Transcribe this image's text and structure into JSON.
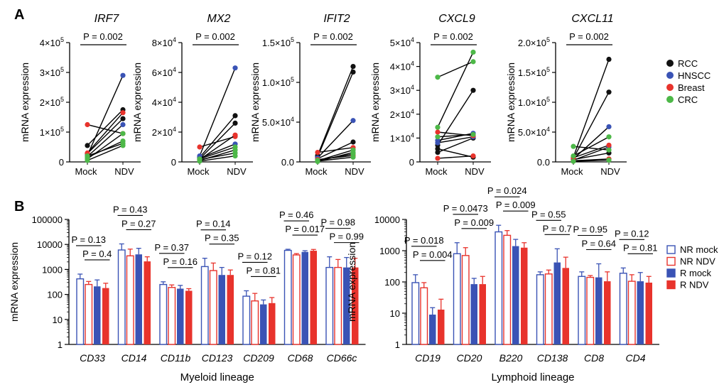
{
  "chart_data": [
    {
      "type": "scatter",
      "panel": "A",
      "title": "IRF7",
      "ylabel": "mRNA expression",
      "categories": [
        "Mock",
        "NDV"
      ],
      "ylim": [
        0,
        400000
      ],
      "yticks": [
        "0",
        "1×10^5",
        "2×10^5",
        "3×10^5",
        "4×10^5"
      ],
      "pvalue": "P = 0.002",
      "pairs": [
        {
          "group": "RCC",
          "mock": 55000,
          "ndv": 175000
        },
        {
          "group": "RCC",
          "mock": 28000,
          "ndv": 145000
        },
        {
          "group": "HNSCC",
          "mock": 22000,
          "ndv": 290000
        },
        {
          "group": "HNSCC",
          "mock": 18000,
          "ndv": 125000
        },
        {
          "group": "Breast",
          "mock": 125000,
          "ndv": 95000
        },
        {
          "group": "Breast",
          "mock": 30000,
          "ndv": 165000
        },
        {
          "group": "CRC",
          "mock": 10000,
          "ndv": 95000
        },
        {
          "group": "CRC",
          "mock": 15000,
          "ndv": 70000
        },
        {
          "group": "CRC",
          "mock": 5000,
          "ndv": 55000
        },
        {
          "group": "CRC",
          "mock": 20000,
          "ndv": 62000
        }
      ]
    },
    {
      "type": "scatter",
      "panel": "A",
      "title": "MX2",
      "ylabel": "mRNA expression",
      "categories": [
        "Mock",
        "NDV"
      ],
      "ylim": [
        0,
        80000
      ],
      "yticks": [
        "0",
        "2×10^4",
        "4×10^4",
        "6×10^4",
        "8×10^4"
      ],
      "pvalue": "P = 0.002",
      "pairs": [
        {
          "group": "RCC",
          "mock": 3000,
          "ndv": 31000
        },
        {
          "group": "RCC",
          "mock": 2000,
          "ndv": 26000
        },
        {
          "group": "HNSCC",
          "mock": 4000,
          "ndv": 63000
        },
        {
          "group": "HNSCC",
          "mock": 2500,
          "ndv": 12000
        },
        {
          "group": "Breast",
          "mock": 10000,
          "ndv": 17000
        },
        {
          "group": "Breast",
          "mock": 1500,
          "ndv": 18000
        },
        {
          "group": "CRC",
          "mock": 1000,
          "ndv": 8000
        },
        {
          "group": "CRC",
          "mock": 1500,
          "ndv": 6000
        },
        {
          "group": "CRC",
          "mock": 500,
          "ndv": 4000
        },
        {
          "group": "CRC",
          "mock": 2000,
          "ndv": 10000
        }
      ]
    },
    {
      "type": "scatter",
      "panel": "A",
      "title": "IFIT2",
      "ylabel": "mRNA expression",
      "categories": [
        "Mock",
        "NDV"
      ],
      "ylim": [
        0,
        150000
      ],
      "yticks": [
        "0.0",
        "5.0×10^4",
        "1.0×10^5",
        "1.5×10^5"
      ],
      "pvalue": "P = 0.002",
      "pairs": [
        {
          "group": "RCC",
          "mock": 8000,
          "ndv": 120000
        },
        {
          "group": "RCC",
          "mock": 6000,
          "ndv": 113000
        },
        {
          "group": "RCC",
          "mock": 4000,
          "ndv": 25000
        },
        {
          "group": "HNSCC",
          "mock": 5000,
          "ndv": 52000
        },
        {
          "group": "Breast",
          "mock": 12000,
          "ndv": 18000
        },
        {
          "group": "Breast",
          "mock": 3000,
          "ndv": 8000
        },
        {
          "group": "CRC",
          "mock": 2000,
          "ndv": 10000
        },
        {
          "group": "CRC",
          "mock": 1000,
          "ndv": 6000
        },
        {
          "group": "CRC",
          "mock": 500,
          "ndv": 12000
        },
        {
          "group": "CRC",
          "mock": 1500,
          "ndv": 15000
        }
      ]
    },
    {
      "type": "scatter",
      "panel": "A",
      "title": "CXCL9",
      "ylabel": "mRNA expression",
      "categories": [
        "Mock",
        "NDV"
      ],
      "ylim": [
        0,
        50000
      ],
      "yticks": [
        "0",
        "1×10^4",
        "2×10^4",
        "3×10^4",
        "4×10^4",
        "5×10^4"
      ],
      "pvalue": "P = 0.002",
      "pairs": [
        {
          "group": "RCC",
          "mock": 7000,
          "ndv": 30000
        },
        {
          "group": "RCC",
          "mock": 4000,
          "ndv": 10000
        },
        {
          "group": "RCC",
          "mock": 5500,
          "ndv": 2000
        },
        {
          "group": "HNSCC",
          "mock": 9000,
          "ndv": 12000
        },
        {
          "group": "HNSCC",
          "mock": 8000,
          "ndv": 10500
        },
        {
          "group": "Breast",
          "mock": 12500,
          "ndv": 11000
        },
        {
          "group": "Breast",
          "mock": 1500,
          "ndv": 2500
        },
        {
          "group": "CRC",
          "mock": 35500,
          "ndv": 42000
        },
        {
          "group": "CRC",
          "mock": 14500,
          "ndv": 46000
        },
        {
          "group": "CRC",
          "mock": 10500,
          "ndv": 11500
        }
      ]
    },
    {
      "type": "scatter",
      "panel": "A",
      "title": "CXCL11",
      "ylabel": "mRNA expression",
      "categories": [
        "Mock",
        "NDV"
      ],
      "ylim": [
        0,
        200000
      ],
      "yticks": [
        "0.0",
        "5.0×10^4",
        "1.0×10^5",
        "1.5×10^5",
        "2.0×10^5"
      ],
      "pvalue": "P = 0.002",
      "pairs": [
        {
          "group": "RCC",
          "mock": 8000,
          "ndv": 172000
        },
        {
          "group": "RCC",
          "mock": 6000,
          "ndv": 117000
        },
        {
          "group": "RCC",
          "mock": 4000,
          "ndv": 15000
        },
        {
          "group": "HNSCC",
          "mock": 5000,
          "ndv": 59000
        },
        {
          "group": "HNSCC",
          "mock": 3000,
          "ndv": 25000
        },
        {
          "group": "Breast",
          "mock": 7000,
          "ndv": 28000
        },
        {
          "group": "Breast",
          "mock": 2000,
          "ndv": 5000
        },
        {
          "group": "CRC",
          "mock": 26000,
          "ndv": 20000
        },
        {
          "group": "CRC",
          "mock": 10000,
          "ndv": 42000
        },
        {
          "group": "CRC",
          "mock": 1000,
          "ndv": 3000
        }
      ]
    },
    {
      "type": "bar",
      "panel": "B",
      "xlabel": "Myeloid lineage",
      "ylabel": "mRNA expression",
      "scale": "log",
      "ylim": [
        1,
        100000
      ],
      "yticks": [
        "1",
        "10",
        "100",
        "1000",
        "10000",
        "100000"
      ],
      "categories": [
        "CD33",
        "CD14",
        "CD11b",
        "CD123",
        "CD209",
        "CD68",
        "CD66c"
      ],
      "series": [
        {
          "name": "NR mock",
          "values": [
            420,
            6000,
            250,
            1300,
            85,
            5800,
            1200
          ],
          "errors": [
            650,
            10500,
            320,
            2800,
            140,
            6400,
            3200
          ]
        },
        {
          "name": "NR NDV",
          "values": [
            250,
            3500,
            190,
            900,
            55,
            3800,
            1200
          ],
          "errors": [
            330,
            6500,
            240,
            1800,
            110,
            4300,
            2500
          ]
        },
        {
          "name": "R mock",
          "values": [
            210,
            4000,
            170,
            600,
            40,
            5000,
            1200
          ],
          "errors": [
            380,
            7000,
            230,
            1200,
            60,
            5600,
            3000
          ]
        },
        {
          "name": "R NDV",
          "values": [
            180,
            2100,
            140,
            600,
            45,
            5600,
            1200
          ],
          "errors": [
            280,
            3200,
            170,
            950,
            75,
            6300,
            2800
          ]
        }
      ],
      "comparisons": [
        {
          "label": "P = 0.13",
          "group": "CD33",
          "pair": [
            "NR mock",
            "R mock"
          ]
        },
        {
          "label": "P = 0.4",
          "group": "CD33",
          "pair": [
            "NR NDV",
            "R NDV"
          ]
        },
        {
          "label": "P = 0.43",
          "group": "CD14",
          "pair": [
            "NR mock",
            "R mock"
          ]
        },
        {
          "label": "P = 0.27",
          "group": "CD14",
          "pair": [
            "NR NDV",
            "R NDV"
          ]
        },
        {
          "label": "P = 0.37",
          "group": "CD11b",
          "pair": [
            "NR mock",
            "R mock"
          ]
        },
        {
          "label": "P = 0.16",
          "group": "CD11b",
          "pair": [
            "NR NDV",
            "R NDV"
          ]
        },
        {
          "label": "P = 0.14",
          "group": "CD123",
          "pair": [
            "NR mock",
            "R mock"
          ]
        },
        {
          "label": "P = 0.35",
          "group": "CD123",
          "pair": [
            "NR NDV",
            "R NDV"
          ]
        },
        {
          "label": "P = 0.12",
          "group": "CD209",
          "pair": [
            "NR mock",
            "R mock"
          ]
        },
        {
          "label": "P = 0.81",
          "group": "CD209",
          "pair": [
            "NR NDV",
            "R NDV"
          ]
        },
        {
          "label": "P = 0.46",
          "group": "CD68",
          "pair": [
            "NR mock",
            "R mock"
          ]
        },
        {
          "label": "P = 0.017",
          "group": "CD68",
          "pair": [
            "NR NDV",
            "R NDV"
          ]
        },
        {
          "label": "P = 0.98",
          "group": "CD66c",
          "pair": [
            "NR mock",
            "R mock"
          ]
        },
        {
          "label": "P = 0.99",
          "group": "CD66c",
          "pair": [
            "NR NDV",
            "R NDV"
          ]
        }
      ]
    },
    {
      "type": "bar",
      "panel": "B",
      "xlabel": "Lymphoid lineage",
      "ylabel": "mRNA expression",
      "scale": "log",
      "ylim": [
        1,
        10000
      ],
      "yticks": [
        "1",
        "10",
        "100",
        "1000",
        "10000"
      ],
      "categories": [
        "CD19",
        "CD20",
        "B220",
        "CD138",
        "CD8",
        "CD4"
      ],
      "series": [
        {
          "name": "NR mock",
          "values": [
            95,
            800,
            4000,
            170,
            150,
            190
          ],
          "errors": [
            170,
            1800,
            6500,
            210,
            210,
            280
          ]
        },
        {
          "name": "NR NDV",
          "values": [
            65,
            700,
            3100,
            180,
            140,
            105
          ],
          "errors": [
            95,
            1250,
            4400,
            240,
            160,
            170
          ]
        },
        {
          "name": "R mock",
          "values": [
            9,
            85,
            1400,
            420,
            140,
            105
          ],
          "errors": [
            15,
            130,
            2300,
            1150,
            380,
            200
          ]
        },
        {
          "name": "R NDV",
          "values": [
            13,
            85,
            1250,
            280,
            105,
            95
          ],
          "errors": [
            28,
            150,
            1800,
            620,
            210,
            150
          ]
        }
      ],
      "comparisons": [
        {
          "label": "P = 0.018",
          "group": "CD19",
          "pair": [
            "NR mock",
            "R mock"
          ]
        },
        {
          "label": "P = 0.004",
          "group": "CD19",
          "pair": [
            "NR NDV",
            "R NDV"
          ]
        },
        {
          "label": "P = 0.0473",
          "group": "CD20",
          "pair": [
            "NR mock",
            "R mock"
          ]
        },
        {
          "label": "P = 0.009",
          "group": "CD20",
          "pair": [
            "NR NDV",
            "R NDV"
          ]
        },
        {
          "label": "P = 0.024",
          "group": "B220",
          "pair": [
            "NR mock",
            "R mock"
          ]
        },
        {
          "label": "P = 0.009",
          "group": "B220",
          "pair": [
            "NR NDV",
            "R NDV"
          ]
        },
        {
          "label": "P = 0.55",
          "group": "CD138",
          "pair": [
            "NR mock",
            "R mock"
          ]
        },
        {
          "label": "P = 0.7",
          "group": "CD138",
          "pair": [
            "NR NDV",
            "R NDV"
          ]
        },
        {
          "label": "P = 0.95",
          "group": "CD8",
          "pair": [
            "NR mock",
            "R mock"
          ]
        },
        {
          "label": "P = 0.64",
          "group": "CD8",
          "pair": [
            "NR NDV",
            "R NDV"
          ]
        },
        {
          "label": "P = 0.12",
          "group": "CD4",
          "pair": [
            "NR mock",
            "R mock"
          ]
        },
        {
          "label": "P = 0.81",
          "group": "CD4",
          "pair": [
            "NR NDV",
            "R NDV"
          ]
        }
      ]
    }
  ],
  "panel_labels": [
    "A",
    "B"
  ],
  "legend_a": {
    "placement": "right",
    "items": [
      {
        "name": "RCC",
        "color": "#111111"
      },
      {
        "name": "HNSCC",
        "color": "#3a53b5"
      },
      {
        "name": "Breast",
        "color": "#e8332c"
      },
      {
        "name": "CRC",
        "color": "#4db848"
      }
    ]
  },
  "legend_b": {
    "placement": "right",
    "items": [
      {
        "name": "NR mock",
        "color": "#3a53b5",
        "filled": false
      },
      {
        "name": "NR NDV",
        "color": "#e8332c",
        "filled": false
      },
      {
        "name": "R mock",
        "color": "#3a53b5",
        "filled": true
      },
      {
        "name": "R NDV",
        "color": "#e8332c",
        "filled": true
      }
    ]
  }
}
